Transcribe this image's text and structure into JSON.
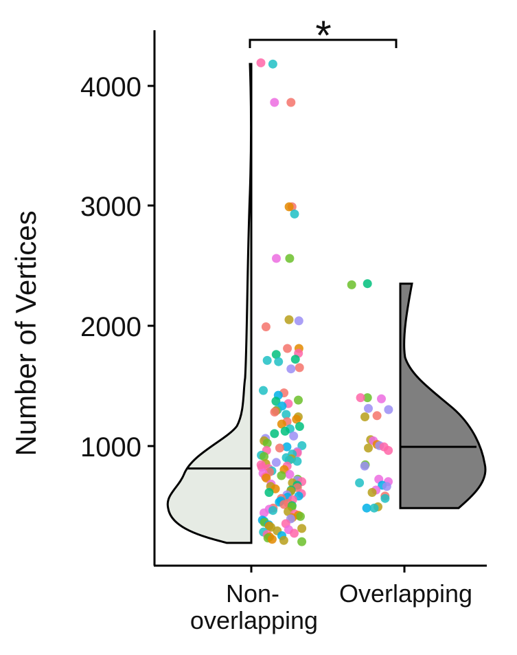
{
  "chart_data": {
    "type": "half-violin-with-jitter",
    "title": "",
    "xlabel": "",
    "ylabel": "Number of Vertices",
    "ylim": [
      0,
      4450
    ],
    "y_ticks": [
      "1000",
      "2000",
      "3000",
      "4000"
    ],
    "categories": [
      {
        "label_lines": [
          "Non-",
          "overlapping"
        ],
        "violin_color": "#e6ebe4",
        "median": 810,
        "range": [
          190,
          4180
        ]
      },
      {
        "label_lines": [
          "Overlapping"
        ],
        "violin_color": "#7f7f7f",
        "median": 990,
        "range": [
          480,
          2350
        ]
      }
    ],
    "significance": {
      "label": "*",
      "between": [
        0,
        1
      ]
    },
    "point_palette": [
      "#6bbf2a",
      "#00b0e6",
      "#1ebfc4",
      "#00bf7d",
      "#b79f1a",
      "#f4736b",
      "#e38900",
      "#ec6ce0",
      "#9b8ef5",
      "#ff66a8"
    ],
    "points": [
      {
        "group": 0,
        "values": [
          4190,
          4180,
          3860,
          3860,
          2990,
          2990,
          2930,
          2560,
          2560,
          2050,
          2040,
          1990,
          1810,
          1810,
          1770,
          1760,
          1720,
          1710,
          1700,
          1650,
          1640,
          1460,
          1440,
          1420,
          1380,
          1370,
          1350,
          1330,
          1300,
          1290,
          1280,
          1260,
          1240,
          1220,
          1200,
          1180,
          1160,
          1140,
          1120,
          1100,
          1080,
          1060,
          1040,
          1020,
          1000,
          990,
          980,
          960,
          950,
          940,
          930,
          920,
          910,
          900,
          890,
          880,
          870,
          860,
          850,
          840,
          830,
          820,
          810,
          800,
          790,
          780,
          770,
          760,
          750,
          740,
          730,
          720,
          710,
          700,
          690,
          680,
          670,
          660,
          650,
          640,
          630,
          620,
          610,
          600,
          590,
          580,
          570,
          560,
          550,
          540,
          530,
          520,
          510,
          500,
          490,
          480,
          470,
          460,
          450,
          440,
          430,
          420,
          410,
          400,
          390,
          380,
          370,
          360,
          350,
          340,
          330,
          320,
          310,
          300,
          290,
          280,
          270,
          260,
          250,
          240,
          230,
          220,
          210,
          200
        ]
      },
      {
        "group": 1,
        "values": [
          2350,
          2340,
          1400,
          1400,
          1390,
          1310,
          1300,
          1250,
          1240,
          1050,
          1040,
          1010,
          1000,
          990,
          980,
          960,
          840,
          830,
          720,
          700,
          690,
          670,
          660,
          630,
          610,
          580,
          560,
          490,
          480,
          480
        ]
      }
    ]
  }
}
